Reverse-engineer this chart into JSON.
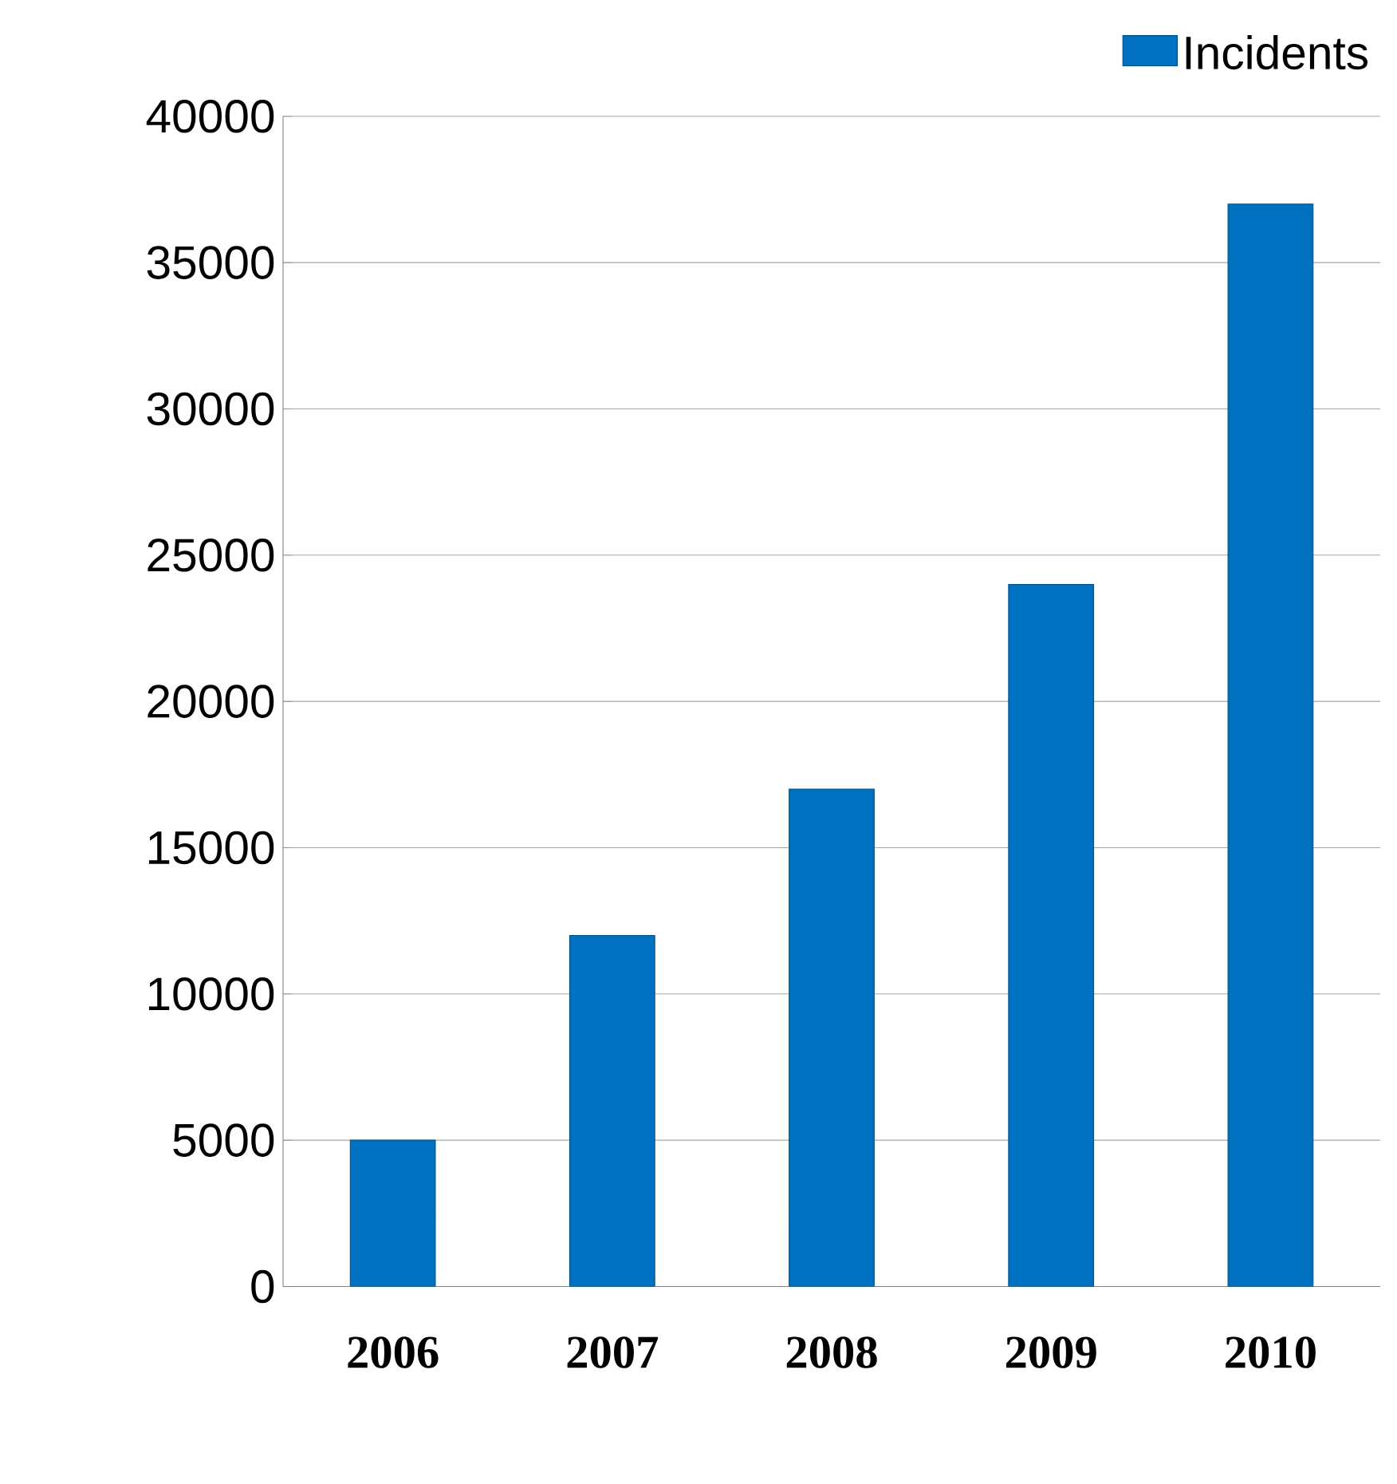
{
  "chart_data": {
    "type": "bar",
    "categories": [
      "2006",
      "2007",
      "2008",
      "2009",
      "2010"
    ],
    "series": [
      {
        "name": "Incidents",
        "color": "#0070c0",
        "values": [
          5000,
          12000,
          17000,
          24000,
          37000
        ]
      }
    ],
    "ylim": [
      0,
      40000
    ],
    "yticks": [
      0,
      5000,
      10000,
      15000,
      20000,
      25000,
      30000,
      35000,
      40000
    ],
    "grid": "y",
    "legend": "top right"
  }
}
